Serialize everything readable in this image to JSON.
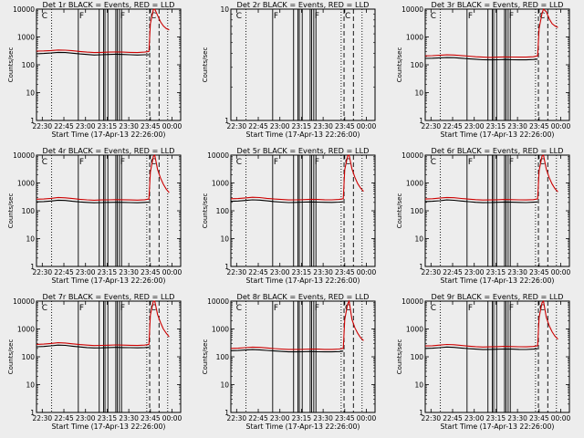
{
  "figure": {
    "background": "#ededed",
    "events_color": "#000000",
    "lld_color": "#cc0000"
  },
  "chart_data": [
    {
      "type": "line",
      "title": "Det 1r BLACK = Events, RED = LLD",
      "xlabel": "Start Time (17-Apr-13 22:26:00)",
      "ylabel": "Counts/sec",
      "x_tick_labels": [
        "22:30",
        "22:45",
        "23:00",
        "23:15",
        "23:30",
        "23:45",
        "00:00"
      ],
      "y_tick_labels": [
        "1",
        "10",
        "100",
        "1000",
        "10000"
      ],
      "xlim_minutes": [
        0,
        100
      ],
      "ylim": [
        1,
        10000
      ],
      "yscale": "log",
      "series": [
        {
          "name": "Events",
          "x_minutes": [
            0,
            5,
            10,
            15,
            20,
            25,
            30,
            35,
            40,
            45,
            50,
            55,
            60,
            65,
            70,
            75,
            78
          ],
          "values": [
            250,
            255,
            265,
            280,
            275,
            260,
            245,
            235,
            225,
            230,
            235,
            240,
            235,
            230,
            225,
            230,
            230
          ]
        },
        {
          "name": "LLD",
          "x_minutes": [
            0,
            5,
            10,
            15,
            20,
            25,
            30,
            35,
            40,
            45,
            50,
            55,
            60,
            65,
            70,
            75,
            78,
            79,
            81,
            82,
            84,
            86,
            88,
            90,
            92
          ],
          "values": [
            310,
            315,
            325,
            340,
            335,
            320,
            300,
            285,
            275,
            280,
            285,
            290,
            285,
            280,
            275,
            285,
            300,
            3000,
            9500,
            10000,
            6000,
            3500,
            2500,
            2000,
            1800
          ]
        }
      ]
    },
    {
      "type": "line",
      "title": "Det 2r BLACK = Events, RED = LLD",
      "xlabel": "Start Time (17-Apr-13 22:26:00)",
      "ylabel": "Counts/sec",
      "x_tick_labels": [
        "22:30",
        "22:45",
        "23:00",
        "23:15",
        "23:30",
        "23:45",
        "00:00"
      ],
      "y_tick_labels": [
        "1",
        "10"
      ],
      "xlim_minutes": [
        0,
        100
      ],
      "ylim": [
        1,
        10
      ],
      "yscale": "log",
      "series": []
    },
    {
      "type": "line",
      "title": "Det 3r BLACK = Events, RED = LLD",
      "xlabel": "Start Time (17-Apr-13 22:26:00)",
      "ylabel": "Counts/sec",
      "x_tick_labels": [
        "22:30",
        "22:45",
        "23:00",
        "23:15",
        "23:30",
        "23:45",
        "00:00"
      ],
      "y_tick_labels": [
        "1",
        "10",
        "100",
        "1000",
        "10000"
      ],
      "xlim_minutes": [
        0,
        100
      ],
      "ylim": [
        1,
        10000
      ],
      "yscale": "log",
      "series": [
        {
          "name": "Events",
          "x_minutes": [
            0,
            5,
            10,
            15,
            20,
            25,
            30,
            35,
            40,
            45,
            50,
            55,
            60,
            65,
            70,
            75,
            78
          ],
          "values": [
            170,
            172,
            178,
            182,
            180,
            172,
            165,
            158,
            152,
            150,
            152,
            155,
            152,
            150,
            150,
            155,
            160
          ]
        },
        {
          "name": "LLD",
          "x_minutes": [
            0,
            5,
            10,
            15,
            20,
            25,
            30,
            35,
            40,
            45,
            50,
            55,
            60,
            65,
            70,
            75,
            78,
            79,
            81,
            82,
            84,
            86,
            88,
            90,
            92
          ],
          "values": [
            210,
            212,
            220,
            228,
            225,
            215,
            205,
            195,
            188,
            185,
            188,
            192,
            190,
            188,
            188,
            195,
            210,
            2000,
            7000,
            10000,
            8000,
            4500,
            3000,
            2500,
            2200
          ]
        }
      ]
    },
    {
      "type": "line",
      "title": "Det 4r BLACK = Events, RED = LLD",
      "xlabel": "Start Time (17-Apr-13 22:26:00)",
      "ylabel": "Counts/sec",
      "x_tick_labels": [
        "22:30",
        "22:45",
        "23:00",
        "23:15",
        "23:30",
        "23:45",
        "00:00"
      ],
      "y_tick_labels": [
        "1",
        "10",
        "100",
        "1000",
        "10000"
      ],
      "xlim_minutes": [
        0,
        100
      ],
      "ylim": [
        1,
        10000
      ],
      "yscale": "log",
      "series": [
        {
          "name": "Events",
          "x_minutes": [
            0,
            5,
            10,
            15,
            20,
            25,
            30,
            35,
            40,
            45,
            50,
            55,
            60,
            65,
            70,
            75,
            78
          ],
          "values": [
            210,
            215,
            225,
            240,
            235,
            220,
            208,
            200,
            195,
            198,
            200,
            202,
            200,
            198,
            195,
            200,
            205
          ]
        },
        {
          "name": "LLD",
          "x_minutes": [
            0,
            5,
            10,
            15,
            20,
            25,
            30,
            35,
            40,
            45,
            50,
            55,
            60,
            65,
            70,
            75,
            78,
            79,
            81,
            82,
            84,
            86,
            88,
            90,
            92
          ],
          "values": [
            260,
            265,
            280,
            300,
            292,
            275,
            258,
            248,
            240,
            245,
            248,
            252,
            250,
            246,
            242,
            250,
            265,
            2500,
            9000,
            10000,
            3000,
            1500,
            900,
            600,
            450
          ]
        }
      ]
    },
    {
      "type": "line",
      "title": "Det 5r BLACK = Events, RED = LLD",
      "xlabel": "Start Time (17-Apr-13 22:26:00)",
      "ylabel": "Counts/sec",
      "x_tick_labels": [
        "22:30",
        "22:45",
        "23:00",
        "23:15",
        "23:30",
        "23:45",
        "00:00"
      ],
      "y_tick_labels": [
        "1",
        "10",
        "100",
        "1000",
        "10000"
      ],
      "xlim_minutes": [
        0,
        100
      ],
      "ylim": [
        1,
        10000
      ],
      "yscale": "log",
      "series": [
        {
          "name": "Events",
          "x_minutes": [
            0,
            5,
            10,
            15,
            20,
            25,
            30,
            35,
            40,
            45,
            50,
            55,
            60,
            65,
            70,
            75,
            78
          ],
          "values": [
            220,
            225,
            235,
            248,
            242,
            228,
            215,
            205,
            198,
            200,
            205,
            208,
            205,
            202,
            200,
            205,
            210
          ]
        },
        {
          "name": "LLD",
          "x_minutes": [
            0,
            5,
            10,
            15,
            20,
            25,
            30,
            35,
            40,
            45,
            50,
            55,
            60,
            65,
            70,
            75,
            78,
            79,
            81,
            82,
            84,
            86,
            88,
            90,
            92
          ],
          "values": [
            270,
            275,
            290,
            305,
            298,
            280,
            265,
            255,
            245,
            248,
            252,
            258,
            255,
            250,
            248,
            255,
            270,
            3000,
            9500,
            10000,
            3200,
            1600,
            950,
            650,
            500
          ]
        }
      ]
    },
    {
      "type": "line",
      "title": "Det 6r BLACK = Events, RED = LLD",
      "xlabel": "Start Time (17-Apr-13 22:26:00)",
      "ylabel": "Counts/sec",
      "x_tick_labels": [
        "22:30",
        "22:45",
        "23:00",
        "23:15",
        "23:30",
        "23:45",
        "00:00"
      ],
      "y_tick_labels": [
        "1",
        "10",
        "100",
        "1000",
        "10000"
      ],
      "xlim_minutes": [
        0,
        100
      ],
      "ylim": [
        1,
        10000
      ],
      "yscale": "log",
      "series": [
        {
          "name": "Events",
          "x_minutes": [
            0,
            5,
            10,
            15,
            20,
            25,
            30,
            35,
            40,
            45,
            50,
            55,
            60,
            65,
            70,
            75,
            78
          ],
          "values": [
            215,
            220,
            230,
            245,
            238,
            225,
            212,
            202,
            196,
            198,
            202,
            206,
            203,
            200,
            198,
            203,
            208
          ]
        },
        {
          "name": "LLD",
          "x_minutes": [
            0,
            5,
            10,
            15,
            20,
            25,
            30,
            35,
            40,
            45,
            50,
            55,
            60,
            65,
            70,
            75,
            78,
            79,
            81,
            82,
            84,
            86,
            88,
            90,
            92
          ],
          "values": [
            265,
            270,
            285,
            302,
            295,
            278,
            262,
            252,
            243,
            246,
            250,
            255,
            252,
            248,
            245,
            252,
            268,
            2800,
            9200,
            10000,
            3100,
            1550,
            920,
            620,
            480
          ]
        }
      ]
    },
    {
      "type": "line",
      "title": "Det 7r BLACK = Events, RED = LLD",
      "xlabel": "Start Time (17-Apr-13 22:26:00)",
      "ylabel": "Counts/sec",
      "x_tick_labels": [
        "22:30",
        "22:45",
        "23:00",
        "23:15",
        "23:30",
        "23:45",
        "00:00"
      ],
      "y_tick_labels": [
        "1",
        "10",
        "100",
        "1000",
        "10000"
      ],
      "xlim_minutes": [
        0,
        100
      ],
      "ylim": [
        1,
        10000
      ],
      "yscale": "log",
      "series": [
        {
          "name": "Events",
          "x_minutes": [
            0,
            5,
            10,
            15,
            20,
            25,
            30,
            35,
            40,
            45,
            50,
            55,
            60,
            65,
            70,
            75,
            78
          ],
          "values": [
            230,
            235,
            248,
            262,
            256,
            240,
            226,
            215,
            208,
            210,
            214,
            218,
            215,
            212,
            210,
            215,
            220
          ]
        },
        {
          "name": "LLD",
          "x_minutes": [
            0,
            5,
            10,
            15,
            20,
            25,
            30,
            35,
            40,
            45,
            50,
            55,
            60,
            65,
            70,
            75,
            78,
            79,
            81,
            82,
            84,
            86,
            88,
            90,
            92
          ],
          "values": [
            280,
            285,
            300,
            320,
            312,
            292,
            275,
            262,
            253,
            256,
            260,
            266,
            262,
            258,
            255,
            262,
            280,
            3200,
            9800,
            10000,
            3300,
            1700,
            1000,
            700,
            520
          ]
        }
      ]
    },
    {
      "type": "line",
      "title": "Det 8r BLACK = Events, RED = LLD",
      "xlabel": "Start Time (17-Apr-13 22:26:00)",
      "ylabel": "Counts/sec",
      "x_tick_labels": [
        "22:30",
        "22:45",
        "23:00",
        "23:15",
        "23:30",
        "23:45",
        "00:00"
      ],
      "y_tick_labels": [
        "1",
        "10",
        "100",
        "1000",
        "10000"
      ],
      "xlim_minutes": [
        0,
        100
      ],
      "ylim": [
        1,
        10000
      ],
      "yscale": "log",
      "series": [
        {
          "name": "Events",
          "x_minutes": [
            0,
            5,
            10,
            15,
            20,
            25,
            30,
            35,
            40,
            45,
            50,
            55,
            60,
            65,
            70,
            75,
            78
          ],
          "values": [
            165,
            168,
            175,
            182,
            178,
            170,
            162,
            156,
            150,
            150,
            152,
            155,
            152,
            150,
            150,
            154,
            160
          ]
        },
        {
          "name": "LLD",
          "x_minutes": [
            0,
            5,
            10,
            15,
            20,
            25,
            30,
            35,
            40,
            45,
            50,
            55,
            60,
            65,
            70,
            75,
            78,
            79,
            81,
            82,
            84,
            86,
            88,
            90,
            92
          ],
          "values": [
            200,
            204,
            212,
            222,
            218,
            208,
            198,
            190,
            184,
            184,
            186,
            190,
            188,
            185,
            185,
            190,
            200,
            2200,
            8000,
            10000,
            2200,
            1100,
            700,
            480,
            380
          ]
        }
      ]
    },
    {
      "type": "line",
      "title": "Det 9r BLACK = Events, RED = LLD",
      "xlabel": "Start Time (17-Apr-13 22:26:00)",
      "ylabel": "Counts/sec",
      "x_tick_labels": [
        "22:30",
        "22:45",
        "23:00",
        "23:15",
        "23:30",
        "23:45",
        "00:00"
      ],
      "y_tick_labels": [
        "1",
        "10",
        "100",
        "1000",
        "10000"
      ],
      "xlim_minutes": [
        0,
        100
      ],
      "ylim": [
        1,
        10000
      ],
      "yscale": "log",
      "series": [
        {
          "name": "Events",
          "x_minutes": [
            0,
            5,
            10,
            15,
            20,
            25,
            30,
            35,
            40,
            45,
            50,
            55,
            60,
            65,
            70,
            75,
            78
          ],
          "values": [
            200,
            204,
            212,
            224,
            218,
            206,
            196,
            188,
            182,
            184,
            187,
            190,
            188,
            185,
            183,
            188,
            194
          ]
        },
        {
          "name": "LLD",
          "x_minutes": [
            0,
            5,
            10,
            15,
            20,
            25,
            30,
            35,
            40,
            45,
            50,
            55,
            60,
            65,
            70,
            75,
            78,
            79,
            81,
            82,
            84,
            86,
            88,
            90,
            92
          ],
          "values": [
            245,
            250,
            262,
            278,
            270,
            255,
            242,
            232,
            225,
            228,
            232,
            236,
            233,
            230,
            228,
            234,
            250,
            2600,
            8800,
            10000,
            2600,
            1300,
            800,
            550,
            430
          ]
        }
      ]
    }
  ]
}
